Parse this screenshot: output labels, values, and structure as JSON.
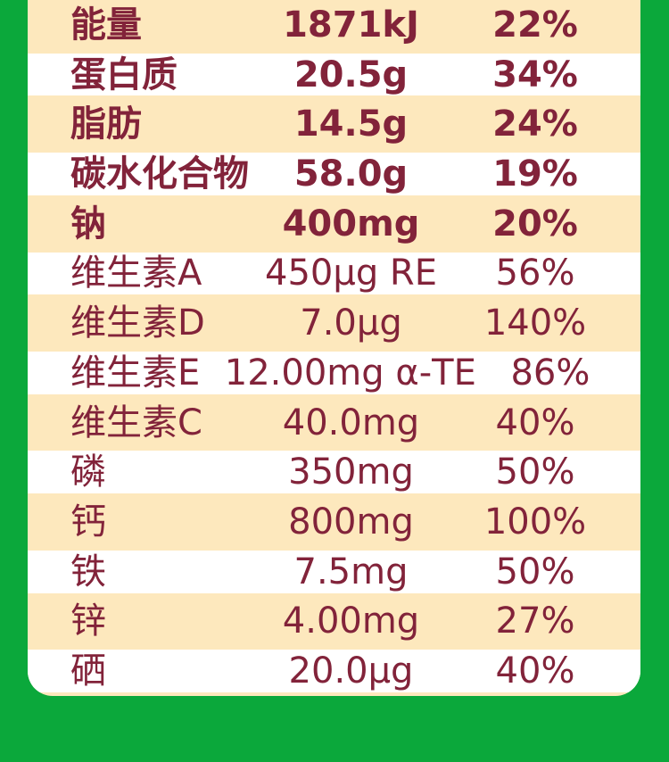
{
  "panel": {
    "description": "nutrition facts table section of product page",
    "columns": [
      "nutrient",
      "amount",
      "nrv_percent"
    ]
  },
  "colors": {
    "background_green": "#0BA83B",
    "card_cream": "#FDE8BD",
    "row_stripe_white": "#FFFFFF",
    "text_maroon": "#82233A"
  },
  "rows": [
    {
      "name": "能量",
      "value": "1871kJ",
      "nrv": "22%",
      "emphasis": true
    },
    {
      "name": "蛋白质",
      "value": "20.5g",
      "nrv": "34%",
      "emphasis": true
    },
    {
      "name": "脂肪",
      "value": "14.5g",
      "nrv": "24%",
      "emphasis": true
    },
    {
      "name": "碳水化合物",
      "value": "58.0g",
      "nrv": "19%",
      "emphasis": true
    },
    {
      "name": "钠",
      "value": "400mg",
      "nrv": "20%",
      "emphasis": true
    },
    {
      "name": "维生素A",
      "value": "450μg RE",
      "nrv": "56%",
      "emphasis": false
    },
    {
      "name": "维生素D",
      "value": "7.0μg",
      "nrv": "140%",
      "emphasis": false
    },
    {
      "name": "维生素E",
      "value": "12.00mg α-TE",
      "nrv": "86%",
      "emphasis": false
    },
    {
      "name": "维生素C",
      "value": "40.0mg",
      "nrv": "40%",
      "emphasis": false
    },
    {
      "name": "磷",
      "value": "350mg",
      "nrv": "50%",
      "emphasis": false
    },
    {
      "name": "钙",
      "value": "800mg",
      "nrv": "100%",
      "emphasis": false
    },
    {
      "name": "铁",
      "value": "7.5mg",
      "nrv": "50%",
      "emphasis": false
    },
    {
      "name": "锌",
      "value": "4.00mg",
      "nrv": "27%",
      "emphasis": false
    },
    {
      "name": "硒",
      "value": "20.0μg",
      "nrv": "40%",
      "emphasis": false
    }
  ]
}
